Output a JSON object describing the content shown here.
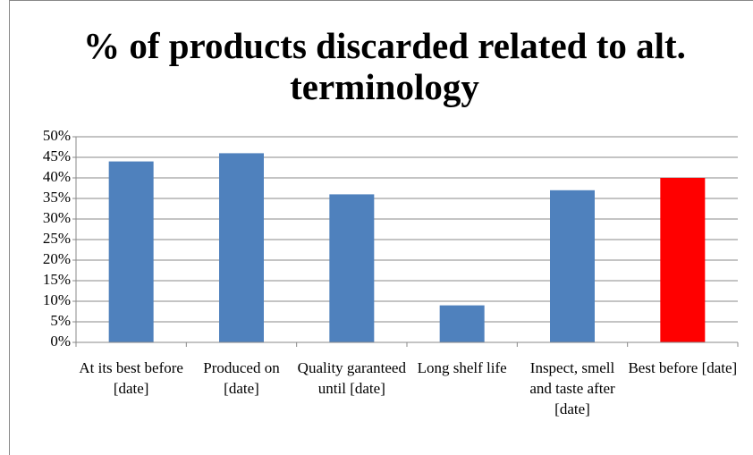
{
  "chart_data": {
    "type": "bar",
    "title": "% of products discarded related to alt. terminology",
    "categories": [
      "At its best before [date]",
      "Produced on [date]",
      "Quality garanteed until [date]",
      "Long shelf life",
      "Inspect, smell and taste after [date]",
      "Best before [date]"
    ],
    "values": [
      44,
      46,
      36,
      9,
      37,
      40
    ],
    "colors": [
      "#4f81bd",
      "#4f81bd",
      "#4f81bd",
      "#4f81bd",
      "#4f81bd",
      "#ff0000"
    ],
    "ylim": [
      0,
      50
    ],
    "yticks": [
      {
        "value": 0,
        "label": "0%"
      },
      {
        "value": 5,
        "label": "5%"
      },
      {
        "value": 10,
        "label": "10%"
      },
      {
        "value": 15,
        "label": "15%"
      },
      {
        "value": 20,
        "label": "20%"
      },
      {
        "value": 25,
        "label": "25%"
      },
      {
        "value": 30,
        "label": "30%"
      },
      {
        "value": 35,
        "label": "35%"
      },
      {
        "value": 40,
        "label": "40%"
      },
      {
        "value": 45,
        "label": "45%"
      },
      {
        "value": 50,
        "label": "50%"
      }
    ],
    "grid": true
  }
}
